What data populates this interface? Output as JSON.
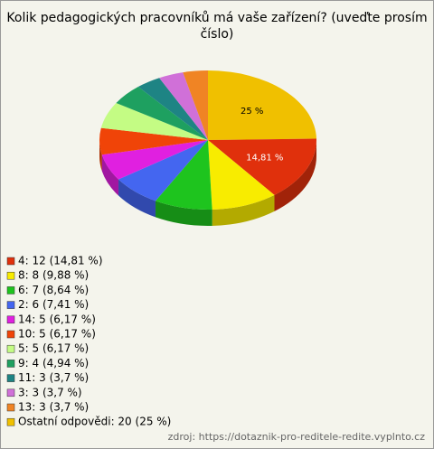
{
  "chart_data": {
    "type": "pie",
    "title": "Kolik pedagogických pracovníků má vaše zařízení? (uveďte prosím číslo)",
    "categories": [
      "4: 12 (14,81 %)",
      "8: 8 (9,88 %)",
      "6: 7 (8,64 %)",
      "2: 6 (7,41 %)",
      "14: 5 (6,17 %)",
      "10: 5 (6,17 %)",
      "5: 5 (6,17 %)",
      "9: 4 (4,94 %)",
      "11: 3 (3,7 %)",
      "3: 3 (3,7 %)",
      "13: 3 (3,7 %)",
      "Ostatní odpovědi: 20 (25 %)"
    ],
    "values": [
      12,
      8,
      7,
      6,
      5,
      5,
      5,
      4,
      3,
      3,
      3,
      20
    ],
    "value_labels": [
      "14,81 %",
      null,
      null,
      null,
      null,
      null,
      null,
      null,
      null,
      null,
      null,
      "25 %"
    ],
    "colors": [
      "#e0300c",
      "#f8ec00",
      "#1ec41e",
      "#4466f0",
      "#e020e0",
      "#f04408",
      "#c4fc84",
      "#1ea060",
      "#1e8484",
      "#d070d8",
      "#f08424",
      "#f0c000"
    ],
    "source": "zdroj: https://dotaznik-pro-reditele-redite.vyplnto.cz"
  }
}
